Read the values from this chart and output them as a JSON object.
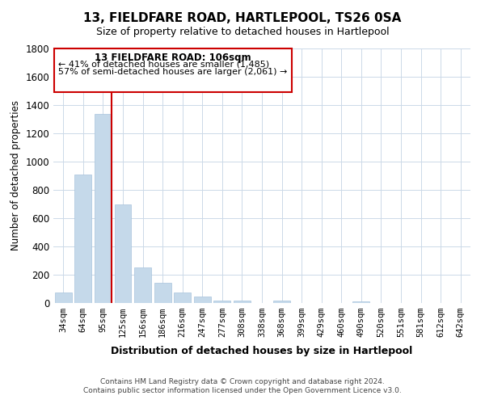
{
  "title": "13, FIELDFARE ROAD, HARTLEPOOL, TS26 0SA",
  "subtitle": "Size of property relative to detached houses in Hartlepool",
  "xlabel": "Distribution of detached houses by size in Hartlepool",
  "ylabel": "Number of detached properties",
  "bar_color": "#c5d9ea",
  "bar_edge_color": "#a8c4dc",
  "categories": [
    "34sqm",
    "64sqm",
    "95sqm",
    "125sqm",
    "156sqm",
    "186sqm",
    "216sqm",
    "247sqm",
    "277sqm",
    "308sqm",
    "338sqm",
    "368sqm",
    "399sqm",
    "429sqm",
    "460sqm",
    "490sqm",
    "520sqm",
    "551sqm",
    "581sqm",
    "612sqm",
    "642sqm"
  ],
  "values": [
    75,
    910,
    1340,
    700,
    250,
    145,
    75,
    45,
    20,
    18,
    0,
    15,
    0,
    0,
    0,
    10,
    0,
    0,
    0,
    0,
    0
  ],
  "ylim": [
    0,
    1800
  ],
  "yticks": [
    0,
    200,
    400,
    600,
    800,
    1000,
    1200,
    1400,
    1600,
    1800
  ],
  "property_line_color": "#cc0000",
  "annotation_title": "13 FIELDFARE ROAD: 106sqm",
  "annotation_line1": "← 41% of detached houses are smaller (1,485)",
  "annotation_line2": "57% of semi-detached houses are larger (2,061) →",
  "footer_line1": "Contains HM Land Registry data © Crown copyright and database right 2024.",
  "footer_line2": "Contains public sector information licensed under the Open Government Licence v3.0.",
  "background_color": "#ffffff",
  "grid_color": "#ccd9e8"
}
